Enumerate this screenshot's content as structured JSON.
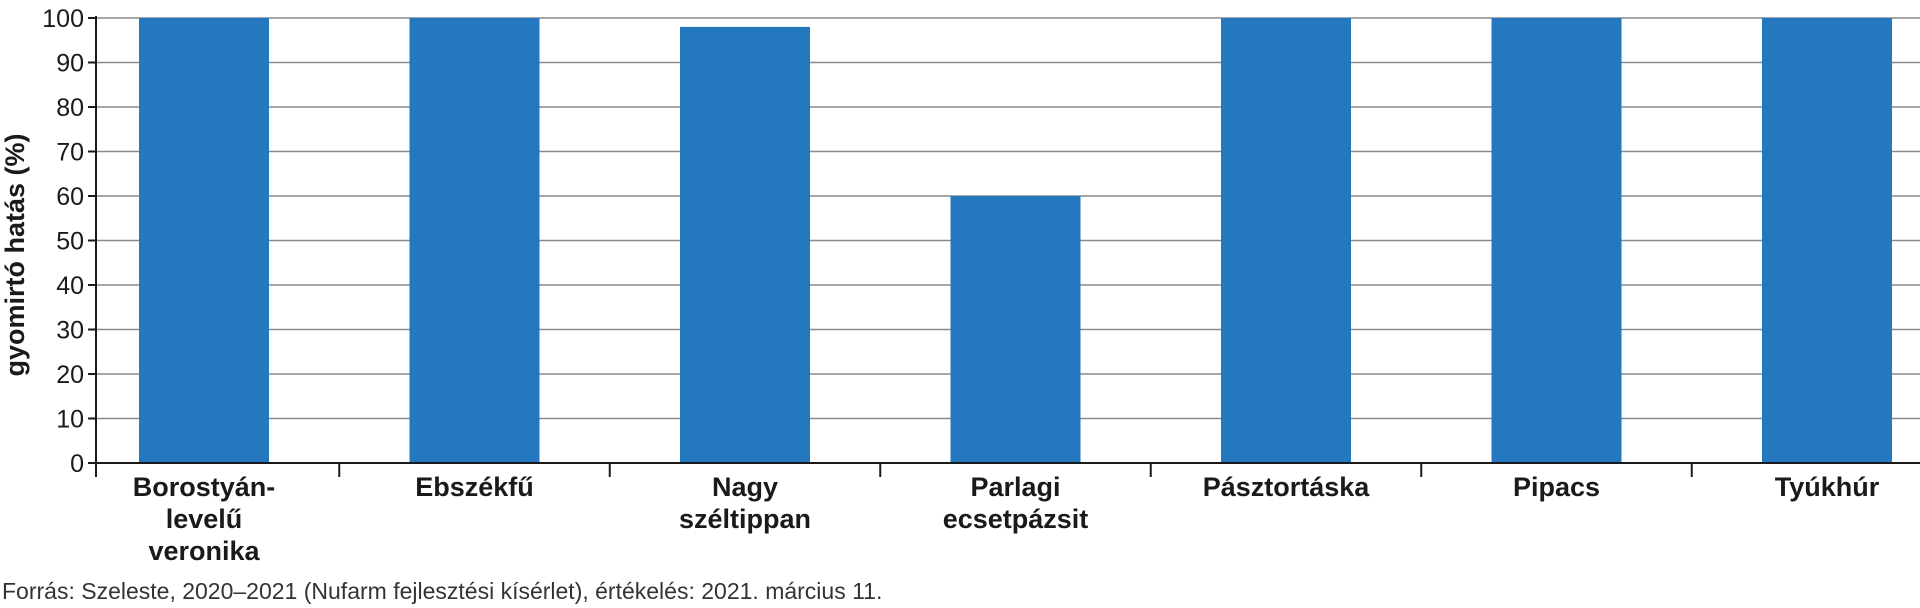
{
  "chart_data": {
    "type": "bar",
    "title": "",
    "xlabel": "",
    "ylabel": "gyomirtó hatás (%)",
    "ylim": [
      0,
      100
    ],
    "yticks": [
      0,
      10,
      20,
      30,
      40,
      50,
      60,
      70,
      80,
      90,
      100
    ],
    "grid": true,
    "categories": [
      [
        "Borostyán-",
        "levelű",
        "veronika"
      ],
      [
        "Ebszékfű"
      ],
      [
        "Nagy",
        "széltippan"
      ],
      [
        "Parlagi",
        "ecsetpázsit"
      ],
      [
        "Pásztortáska"
      ],
      [
        "Pipacs"
      ],
      [
        "Tyúkhúr"
      ]
    ],
    "values": [
      100,
      100,
      98,
      60,
      100,
      100,
      100
    ],
    "bar_color": "#2478bd"
  },
  "source_note": "Forrás: Szeleste, 2020–2021 (Nufarm fejlesztési kísérlet), értékelés: 2021. március 11."
}
